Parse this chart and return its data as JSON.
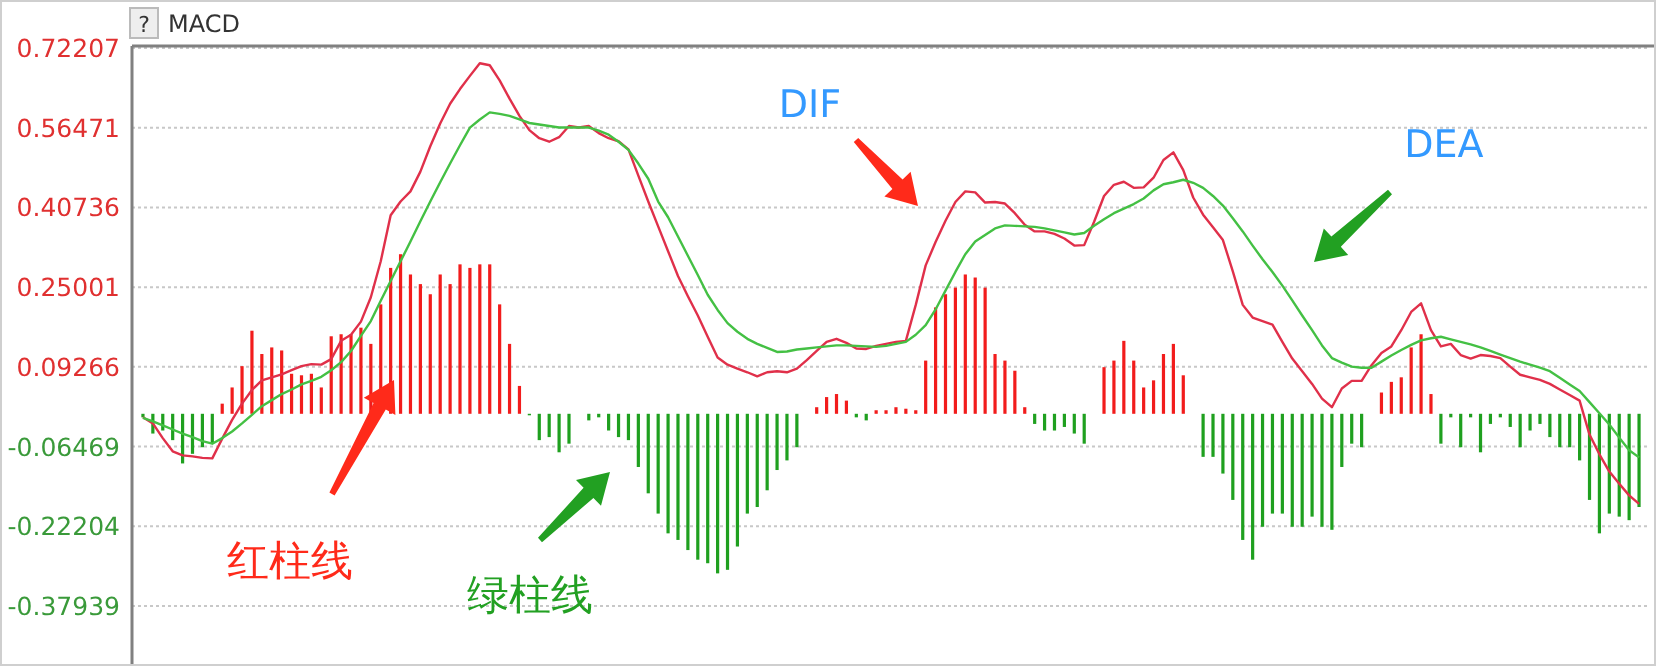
{
  "chart_data": {
    "type": "bar",
    "title": "MACD",
    "categories": [
      null,
      null,
      null,
      null,
      null,
      null,
      null,
      null,
      null,
      null,
      null,
      null,
      null,
      null,
      null,
      null,
      null,
      null,
      null,
      null,
      null,
      null,
      null,
      null,
      null,
      null,
      null,
      null,
      null,
      null,
      null,
      null,
      null,
      null,
      null,
      null,
      null,
      null,
      null,
      null,
      null,
      null,
      null,
      null,
      null,
      null,
      null,
      null,
      null,
      null,
      null,
      null,
      null,
      null,
      null,
      null,
      null,
      null,
      null,
      null,
      null,
      null,
      null,
      null,
      null,
      null,
      null,
      null,
      null,
      null,
      null,
      null,
      null,
      null,
      null,
      null,
      null,
      null,
      null,
      null,
      null,
      null,
      null,
      null,
      null,
      null,
      null,
      null,
      null,
      null,
      null,
      null,
      null,
      null,
      null,
      null,
      null,
      null,
      null,
      null,
      null,
      null,
      null,
      null,
      null,
      null,
      null,
      null,
      null,
      null,
      null,
      null,
      null,
      null,
      null,
      null,
      null,
      null,
      null,
      null,
      null,
      null,
      null,
      null,
      null,
      null,
      null,
      null,
      null,
      null,
      null,
      null,
      null,
      null,
      null,
      null,
      null,
      null,
      null,
      null,
      null,
      null,
      null,
      null,
      null,
      null,
      null,
      null,
      null,
      null,
      null,
      null
    ],
    "ylim": [
      -0.486,
      0.726
    ],
    "yticks": [
      {
        "value": 0.72207,
        "label": "0.72207"
      },
      {
        "value": 0.56471,
        "label": "0.56471"
      },
      {
        "value": 0.40736,
        "label": "0.40736"
      },
      {
        "value": 0.25001,
        "label": "0.25001"
      },
      {
        "value": 0.09266,
        "label": "0.09266"
      },
      {
        "value": -0.06469,
        "label": "-0.06469"
      },
      {
        "value": -0.22204,
        "label": "-0.22204"
      },
      {
        "value": -0.37939,
        "label": "-0.37939"
      }
    ],
    "grid": "y",
    "tick_labels": "y",
    "series": [
      {
        "values": [
          -0.007,
          -0.039,
          -0.033,
          -0.052,
          -0.098,
          -0.079,
          -0.066,
          -0.059,
          0.02,
          0.052,
          0.094,
          0.164,
          0.118,
          0.131,
          0.125,
          0.079,
          0.076,
          0.079,
          0.052,
          0.153,
          0.157,
          0.157,
          0.17,
          0.138,
          0.216,
          0.288,
          0.315,
          0.275,
          0.256,
          0.236,
          0.275,
          0.256,
          0.295,
          0.288,
          0.295,
          0.295,
          0.216,
          0.138,
          0.055,
          -0.003,
          -0.052,
          -0.046,
          -0.076,
          -0.059,
          null,
          -0.013,
          -0.007,
          -0.033,
          -0.046,
          -0.052,
          -0.105,
          -0.157,
          -0.197,
          -0.236,
          -0.249,
          -0.269,
          -0.288,
          -0.295,
          -0.315,
          -0.308,
          -0.262,
          -0.197,
          -0.184,
          -0.151,
          -0.111,
          -0.092,
          -0.066,
          null,
          0.013,
          0.033,
          0.039,
          0.026,
          -0.007,
          -0.013,
          0.007,
          0.007,
          0.013,
          0.01,
          0.007,
          0.105,
          0.21,
          0.236,
          0.249,
          0.275,
          0.269,
          0.249,
          0.118,
          0.105,
          0.085,
          0.013,
          -0.02,
          -0.033,
          -0.033,
          -0.026,
          -0.039,
          -0.059,
          null,
          0.092,
          0.105,
          0.144,
          0.105,
          0.052,
          0.066,
          0.118,
          0.138,
          0.076,
          null,
          -0.085,
          -0.085,
          -0.118,
          -0.17,
          -0.249,
          -0.288,
          -0.223,
          -0.197,
          -0.197,
          -0.223,
          -0.223,
          -0.203,
          -0.223,
          -0.229,
          -0.105,
          -0.059,
          -0.066,
          null,
          0.042,
          0.063,
          0.072,
          0.131,
          0.157,
          0.039,
          -0.059,
          -0.007,
          -0.066,
          -0.007,
          -0.076,
          -0.02,
          -0.007,
          -0.026,
          -0.066,
          -0.033,
          -0.02,
          -0.046,
          -0.066,
          -0.066,
          -0.092,
          -0.17,
          -0.236,
          -0.197,
          -0.203,
          -0.21,
          -0.184
        ],
        "colors": [
          "#1fa01f",
          "#1fa01f",
          "#1fa01f",
          "#1fa01f",
          "#1fa01f",
          "#1fa01f",
          "#1fa01f",
          "#1fa01f",
          "#f21c1c",
          "#f21c1c",
          "#f21c1c",
          "#f21c1c",
          "#f21c1c",
          "#f21c1c",
          "#f21c1c",
          "#f21c1c",
          "#f21c1c",
          "#f21c1c",
          "#f21c1c",
          "#f21c1c",
          "#f21c1c",
          "#f21c1c",
          "#f21c1c",
          "#f21c1c",
          "#f21c1c",
          "#f21c1c",
          "#f21c1c",
          "#f21c1c",
          "#f21c1c",
          "#f21c1c",
          "#f21c1c",
          "#f21c1c",
          "#f21c1c",
          "#f21c1c",
          "#f21c1c",
          "#f21c1c",
          "#f21c1c",
          "#f21c1c",
          "#f21c1c",
          "#1fa01f",
          "#1fa01f",
          "#1fa01f",
          "#1fa01f",
          "#1fa01f",
          "#1fa01f",
          "#1fa01f",
          "#1fa01f",
          "#1fa01f",
          "#1fa01f",
          "#1fa01f",
          "#1fa01f",
          "#1fa01f",
          "#1fa01f",
          "#1fa01f",
          "#1fa01f",
          "#1fa01f",
          "#1fa01f",
          "#1fa01f",
          "#1fa01f",
          "#1fa01f",
          "#1fa01f",
          "#1fa01f",
          "#1fa01f",
          "#1fa01f",
          "#1fa01f",
          "#1fa01f",
          "#1fa01f",
          "#1fa01f",
          "#f21c1c",
          "#f21c1c",
          "#f21c1c",
          "#f21c1c",
          "#1fa01f",
          "#1fa01f",
          "#f21c1c",
          "#f21c1c",
          "#f21c1c",
          "#f21c1c",
          "#f21c1c",
          "#f21c1c",
          "#f21c1c",
          "#f21c1c",
          "#f21c1c",
          "#f21c1c",
          "#f21c1c",
          "#f21c1c",
          "#f21c1c",
          "#f21c1c",
          "#f21c1c",
          "#f21c1c",
          "#1fa01f",
          "#1fa01f",
          "#1fa01f",
          "#1fa01f",
          "#1fa01f",
          "#1fa01f",
          "#1fa01f",
          "#f21c1c",
          "#f21c1c",
          "#f21c1c",
          "#f21c1c",
          "#f21c1c",
          "#f21c1c",
          "#f21c1c",
          "#f21c1c",
          "#f21c1c",
          "#1fa01f",
          "#1fa01f",
          "#1fa01f",
          "#1fa01f",
          "#1fa01f",
          "#1fa01f",
          "#1fa01f",
          "#1fa01f",
          "#1fa01f",
          "#1fa01f",
          "#1fa01f",
          "#1fa01f",
          "#1fa01f",
          "#1fa01f",
          "#1fa01f",
          "#1fa01f",
          "#1fa01f",
          "#1fa01f",
          "#1fa01f",
          "#f21c1c",
          "#f21c1c",
          "#f21c1c",
          "#f21c1c",
          "#f21c1c",
          "#f21c1c",
          "#1fa01f",
          "#1fa01f",
          "#1fa01f",
          "#1fa01f",
          "#1fa01f",
          "#1fa01f",
          "#1fa01f",
          "#1fa01f",
          "#1fa01f",
          "#1fa01f",
          "#1fa01f",
          "#1fa01f",
          "#1fa01f",
          "#1fa01f",
          "#1fa01f",
          "#1fa01f",
          "#1fa01f",
          "#1fa01f",
          "#1fa01f",
          "#1fa01f",
          "#1fa01f"
        ]
      },
      {
        "type": "line",
        "color": "#e0304a",
        "values": [
          -0.007,
          -0.019,
          -0.048,
          -0.074,
          -0.082,
          -0.084,
          -0.087,
          -0.088,
          -0.049,
          -0.012,
          0.02,
          0.047,
          0.066,
          0.072,
          0.078,
          0.086,
          0.094,
          0.098,
          0.097,
          0.108,
          0.144,
          0.156,
          0.182,
          0.23,
          0.301,
          0.392,
          0.419,
          0.439,
          0.478,
          0.528,
          0.573,
          0.612,
          0.641,
          0.667,
          0.692,
          0.688,
          0.658,
          0.622,
          0.588,
          0.56,
          0.544,
          0.537,
          0.546,
          0.568,
          0.565,
          0.568,
          0.554,
          0.544,
          0.538,
          0.522,
          0.47,
          0.419,
          0.37,
          0.321,
          0.272,
          0.232,
          0.194,
          0.152,
          0.111,
          0.097,
          0.089,
          0.082,
          0.074,
          0.082,
          0.084,
          0.082,
          0.089,
          0.106,
          0.124,
          0.142,
          0.148,
          0.14,
          0.129,
          0.128,
          0.134,
          0.138,
          0.142,
          0.144,
          0.215,
          0.293,
          0.339,
          0.381,
          0.418,
          0.439,
          0.437,
          0.417,
          0.418,
          0.415,
          0.396,
          0.373,
          0.36,
          0.36,
          0.355,
          0.346,
          0.332,
          0.333,
          0.379,
          0.43,
          0.452,
          0.458,
          0.446,
          0.447,
          0.466,
          0.501,
          0.516,
          0.481,
          0.427,
          0.393,
          0.368,
          0.343,
          0.281,
          0.215,
          0.19,
          0.183,
          0.176,
          0.142,
          0.109,
          0.084,
          0.059,
          0.03,
          0.013,
          0.05,
          0.065,
          0.065,
          0.096,
          0.12,
          0.133,
          0.165,
          0.201,
          0.218,
          0.165,
          0.133,
          0.138,
          0.116,
          0.109,
          0.116,
          0.114,
          0.11,
          0.093,
          0.077,
          0.072,
          0.067,
          0.059,
          0.048,
          0.037,
          0.026,
          -0.041,
          -0.08,
          -0.114,
          -0.138,
          -0.161,
          -0.178
        ]
      },
      {
        "type": "line",
        "color": "#44c044",
        "values": [
          -0.008,
          -0.015,
          -0.023,
          -0.031,
          -0.039,
          -0.046,
          -0.054,
          -0.059,
          -0.048,
          -0.035,
          -0.019,
          -0.002,
          0.015,
          0.027,
          0.039,
          0.048,
          0.058,
          0.065,
          0.073,
          0.086,
          0.102,
          0.124,
          0.154,
          0.183,
          0.223,
          0.262,
          0.301,
          0.34,
          0.38,
          0.419,
          0.457,
          0.494,
          0.53,
          0.565,
          0.581,
          0.595,
          0.592,
          0.588,
          0.581,
          0.574,
          0.571,
          0.568,
          0.565,
          0.565,
          0.565,
          0.565,
          0.559,
          0.551,
          0.537,
          0.521,
          0.494,
          0.464,
          0.419,
          0.388,
          0.35,
          0.312,
          0.274,
          0.235,
          0.205,
          0.179,
          0.162,
          0.148,
          0.138,
          0.13,
          0.122,
          0.123,
          0.127,
          0.129,
          0.131,
          0.133,
          0.135,
          0.135,
          0.134,
          0.133,
          0.132,
          0.134,
          0.138,
          0.142,
          0.156,
          0.175,
          0.206,
          0.243,
          0.28,
          0.315,
          0.34,
          0.353,
          0.366,
          0.372,
          0.371,
          0.37,
          0.369,
          0.366,
          0.362,
          0.358,
          0.354,
          0.357,
          0.371,
          0.384,
          0.396,
          0.405,
          0.414,
          0.425,
          0.441,
          0.453,
          0.457,
          0.462,
          0.456,
          0.446,
          0.43,
          0.411,
          0.386,
          0.36,
          0.332,
          0.305,
          0.28,
          0.253,
          0.224,
          0.194,
          0.165,
          0.135,
          0.11,
          0.101,
          0.093,
          0.091,
          0.091,
          0.103,
          0.115,
          0.126,
          0.136,
          0.145,
          0.149,
          0.152,
          0.147,
          0.142,
          0.137,
          0.131,
          0.124,
          0.117,
          0.11,
          0.103,
          0.097,
          0.091,
          0.084,
          0.071,
          0.058,
          0.045,
          0.023,
          0.001,
          -0.021,
          -0.047,
          -0.072,
          -0.086
        ]
      }
    ],
    "annotations": [
      "?",
      "DIF",
      "DEA",
      "红柱线",
      "绿柱线"
    ]
  }
}
